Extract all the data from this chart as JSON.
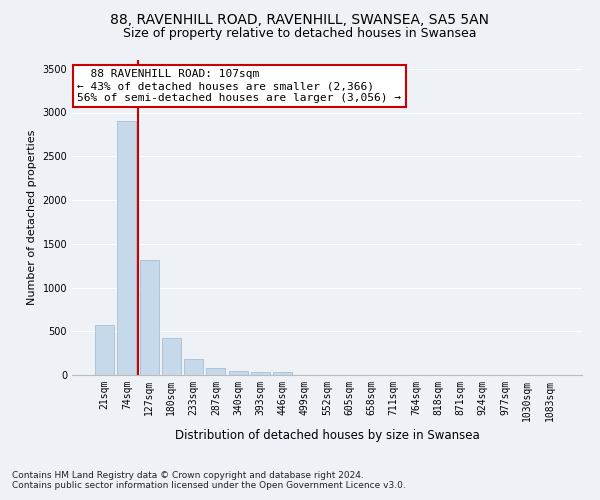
{
  "title_line1": "88, RAVENHILL ROAD, RAVENHILL, SWANSEA, SA5 5AN",
  "title_line2": "Size of property relative to detached houses in Swansea",
  "xlabel": "Distribution of detached houses by size in Swansea",
  "ylabel": "Number of detached properties",
  "footnote1": "Contains HM Land Registry data © Crown copyright and database right 2024.",
  "footnote2": "Contains public sector information licensed under the Open Government Licence v3.0.",
  "annotation_line1": "88 RAVENHILL ROAD: 107sqm",
  "annotation_line2": "← 43% of detached houses are smaller (2,366)",
  "annotation_line3": "56% of semi-detached houses are larger (3,056) →",
  "bar_labels": [
    "21sqm",
    "74sqm",
    "127sqm",
    "180sqm",
    "233sqm",
    "287sqm",
    "340sqm",
    "393sqm",
    "446sqm",
    "499sqm",
    "552sqm",
    "605sqm",
    "658sqm",
    "711sqm",
    "764sqm",
    "818sqm",
    "871sqm",
    "924sqm",
    "977sqm",
    "1030sqm",
    "1083sqm"
  ],
  "bar_values": [
    570,
    2900,
    1310,
    420,
    185,
    80,
    50,
    40,
    35,
    0,
    0,
    0,
    0,
    0,
    0,
    0,
    0,
    0,
    0,
    0,
    0
  ],
  "bar_color": "#c6d9ea",
  "bar_edge_color": "#9ab8cc",
  "vline_x": 1.5,
  "vline_color": "#cc0000",
  "ylim": [
    0,
    3600
  ],
  "yticks": [
    0,
    500,
    1000,
    1500,
    2000,
    2500,
    3000,
    3500
  ],
  "background_color": "#eef2f7",
  "grid_color": "#ffffff",
  "annotation_box_facecolor": "#ffffff",
  "annotation_box_edgecolor": "#cc0000",
  "title_fontsize": 10,
  "subtitle_fontsize": 9,
  "axis_label_fontsize": 8.5,
  "tick_fontsize": 7,
  "annotation_fontsize": 8,
  "footnote_fontsize": 6.5,
  "ylabel_fontsize": 8
}
